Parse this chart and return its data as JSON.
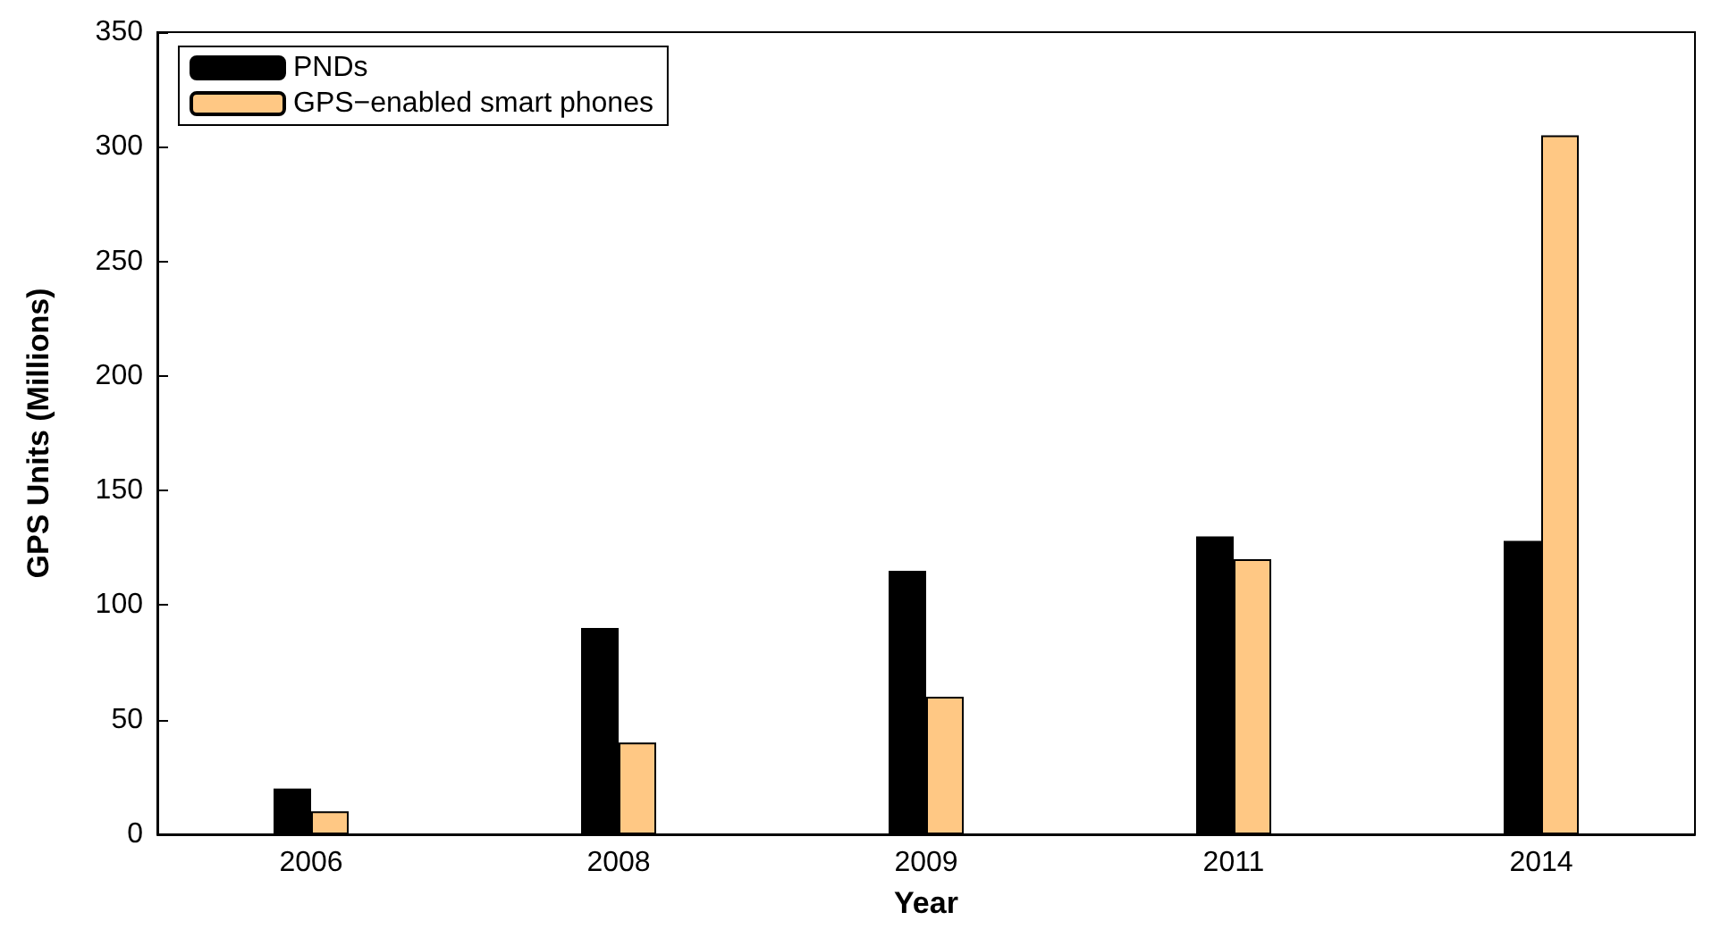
{
  "chart_data": {
    "type": "bar",
    "xlabel": "Year",
    "ylabel": "GPS Units (Millions)",
    "categories": [
      "2006",
      "2008",
      "2009",
      "2011",
      "2014"
    ],
    "series": [
      {
        "name": "PNDs",
        "color": "#000000",
        "values": [
          20,
          90,
          115,
          130,
          128
        ]
      },
      {
        "name": "GPS−enabled smart phones",
        "color": "#ffc884",
        "values": [
          10,
          40,
          60,
          120,
          305
        ]
      }
    ],
    "ylim": [
      0,
      350
    ],
    "yticks": [
      0,
      50,
      100,
      150,
      200,
      250,
      300,
      350
    ],
    "grid": false,
    "legend": "top left"
  }
}
